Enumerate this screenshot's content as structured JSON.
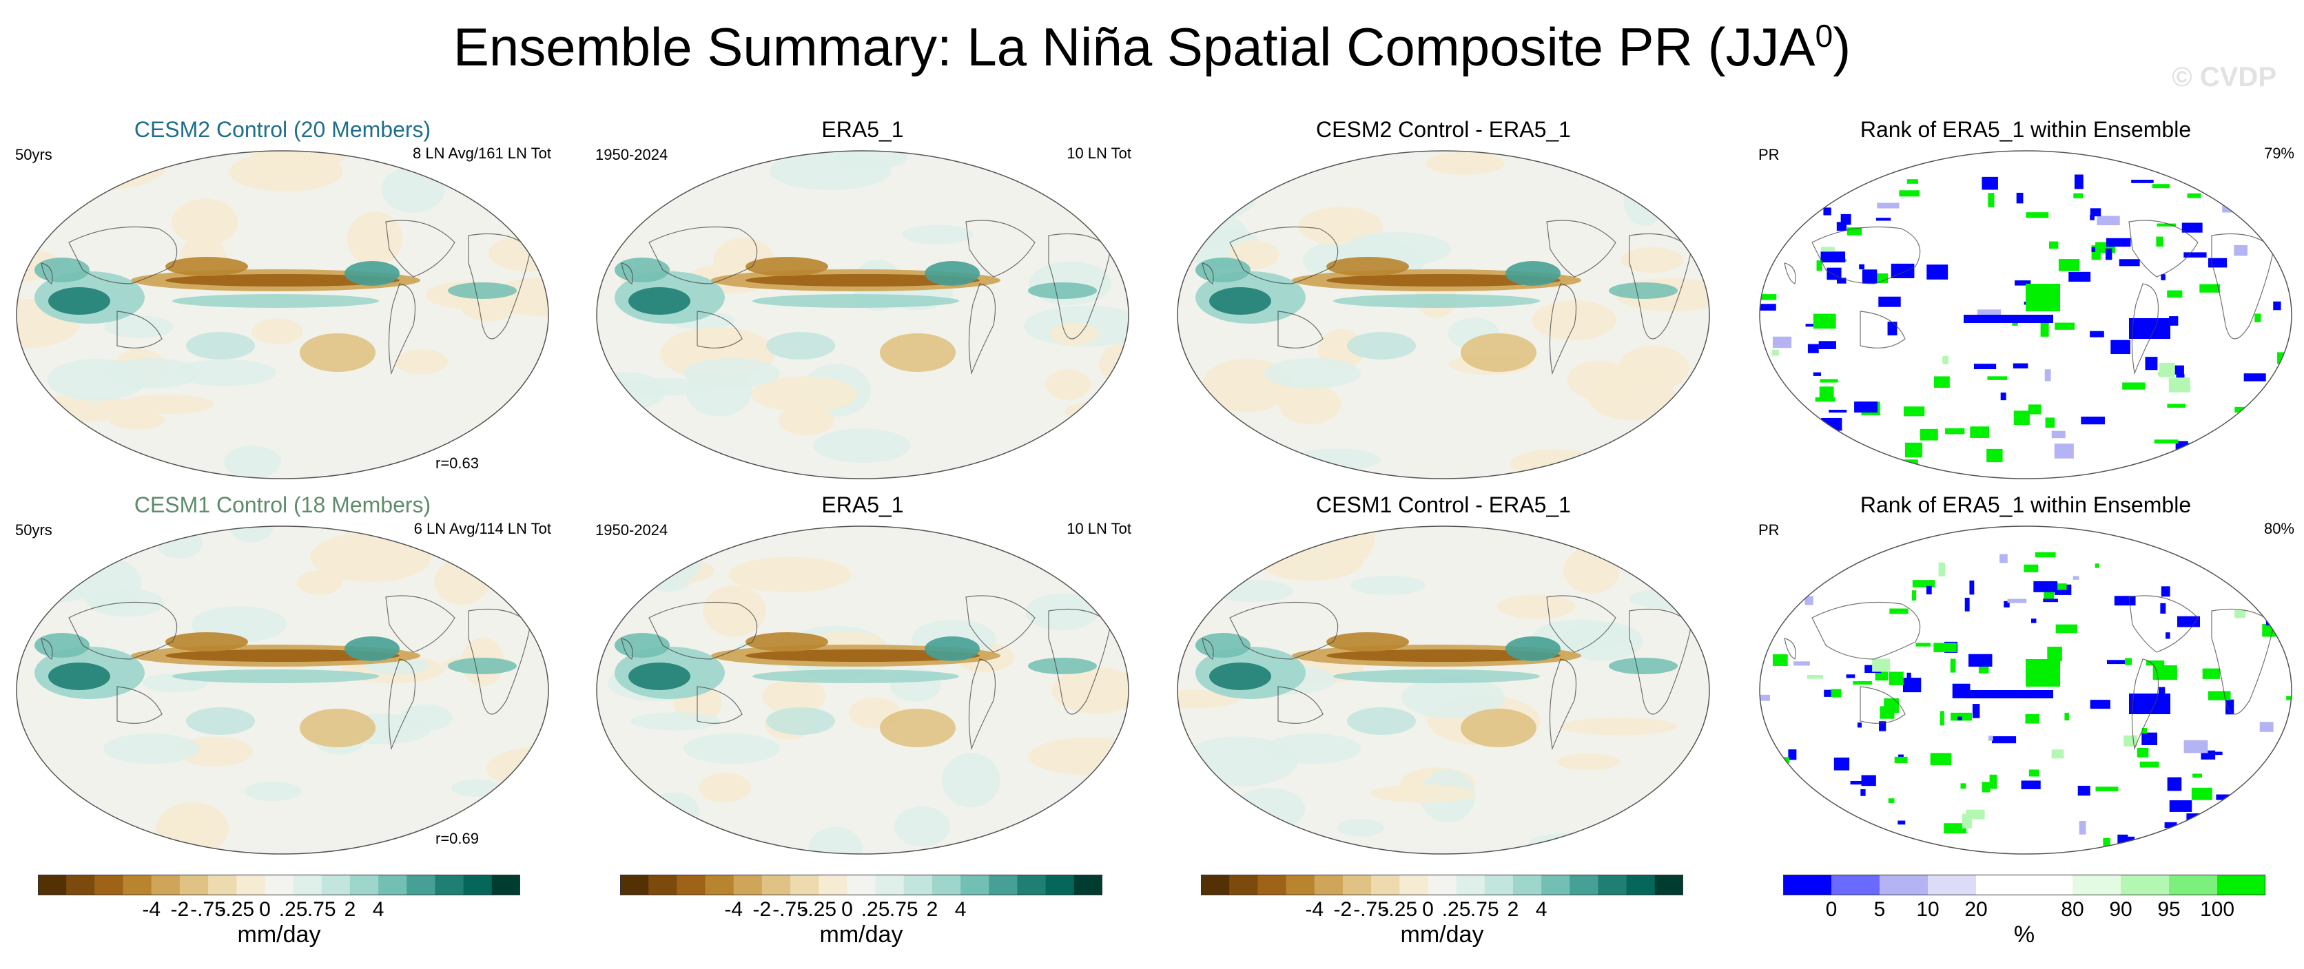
{
  "title": "Ensemble Summary: La Niña Spatial Composite PR (JJA",
  "title_sup": "0",
  "title_close": ")",
  "watermark": "© CVDP",
  "panels": [
    {
      "title": "CESM2 Control (20 Members)",
      "title_color": "#1f6e8c",
      "left_label": "50yrs",
      "right_label": "8 LN Avg/161 LN Tot",
      "bottom_label": "r=0.63"
    },
    {
      "title": "ERA5_1",
      "title_color": "#000000",
      "left_label": "1950-2024",
      "right_label": "10 LN Tot",
      "bottom_label": ""
    },
    {
      "title": "CESM2 Control - ERA5_1",
      "title_color": "#000000",
      "left_label": "",
      "right_label": "",
      "bottom_label": ""
    },
    {
      "title": "Rank of ERA5_1 within Ensemble",
      "title_color": "#000000",
      "left_label": "PR",
      "right_label": "79%",
      "bottom_label": ""
    },
    {
      "title": "CESM1 Control (18 Members)",
      "title_color": "#5e8c6a",
      "left_label": "50yrs",
      "right_label": "6 LN Avg/114 LN Tot",
      "bottom_label": "r=0.69"
    },
    {
      "title": "ERA5_1",
      "title_color": "#000000",
      "left_label": "1950-2024",
      "right_label": "10 LN Tot",
      "bottom_label": ""
    },
    {
      "title": "CESM1 Control - ERA5_1",
      "title_color": "#000000",
      "left_label": "",
      "right_label": "",
      "bottom_label": ""
    },
    {
      "title": "Rank of ERA5_1 within Ensemble",
      "title_color": "#000000",
      "left_label": "PR",
      "right_label": "80%",
      "bottom_label": ""
    }
  ],
  "colorbars": [
    {
      "units": "mm/day",
      "ticks": [
        "-4",
        "-2",
        "-.75",
        "-.25",
        "0",
        ".25",
        ".75",
        "2",
        "4"
      ],
      "colors": [
        "#543005",
        "#7b4a0c",
        "#9e6316",
        "#b9842e",
        "#cfa55a",
        "#e0c384",
        "#eddaae",
        "#f6ebd3",
        "#f3f4f0",
        "#dff0ea",
        "#c2e5de",
        "#9fd6cc",
        "#72bfb3",
        "#46a095",
        "#1f7f73",
        "#05665a",
        "#003c30"
      ]
    },
    {
      "units": "mm/day",
      "ticks": [
        "-4",
        "-2",
        "-.75",
        "-.25",
        "0",
        ".25",
        ".75",
        "2",
        "4"
      ],
      "colors": [
        "#543005",
        "#7b4a0c",
        "#9e6316",
        "#b9842e",
        "#cfa55a",
        "#e0c384",
        "#eddaae",
        "#f6ebd3",
        "#f3f4f0",
        "#dff0ea",
        "#c2e5de",
        "#9fd6cc",
        "#72bfb3",
        "#46a095",
        "#1f7f73",
        "#05665a",
        "#003c30"
      ]
    },
    {
      "units": "mm/day",
      "ticks": [
        "-4",
        "-2",
        "-.75",
        "-.25",
        "0",
        ".25",
        ".75",
        "2",
        "4"
      ],
      "colors": [
        "#543005",
        "#7b4a0c",
        "#9e6316",
        "#b9842e",
        "#cfa55a",
        "#e0c384",
        "#eddaae",
        "#f6ebd3",
        "#f3f4f0",
        "#dff0ea",
        "#c2e5de",
        "#9fd6cc",
        "#72bfb3",
        "#46a095",
        "#1f7f73",
        "#05665a",
        "#003c30"
      ]
    },
    {
      "units": "%",
      "ticks": [
        "0",
        "5",
        "10",
        "20",
        "80",
        "90",
        "95",
        "100"
      ],
      "colors": [
        "#0000ff",
        "#6a6aff",
        "#b4b4f5",
        "#dcdcf8",
        "#ffffff",
        "#ffffff",
        "#e2fbe2",
        "#b3f7b3",
        "#7cf07c",
        "#00f000"
      ]
    }
  ],
  "chart_data": {
    "type": "heatmap",
    "title": "Ensemble Summary: La Niña Spatial Composite PR (JJA0)",
    "units": "mm/day",
    "colorbar_levels_mm_per_day": [
      -4,
      -2,
      -0.75,
      -0.25,
      0,
      0.25,
      0.75,
      2,
      4
    ],
    "rank_colorbar_levels_percent": [
      0,
      5,
      10,
      20,
      80,
      90,
      95,
      100
    ],
    "rows": [
      {
        "model": "CESM2 Control (20 Members)",
        "years": "50yrs",
        "la_nina_events": "8 LN Avg/161 LN Tot",
        "pattern_correlation": 0.63,
        "rank_percent_within_ensemble": 79
      },
      {
        "model": "CESM1 Control (18 Members)",
        "years": "50yrs",
        "la_nina_events": "6 LN Avg/114 LN Tot",
        "pattern_correlation": 0.69,
        "rank_percent_within_ensemble": 80
      }
    ],
    "observations": {
      "name": "ERA5_1",
      "period": "1950-2024",
      "la_nina_events": "10 LN Tot"
    }
  }
}
